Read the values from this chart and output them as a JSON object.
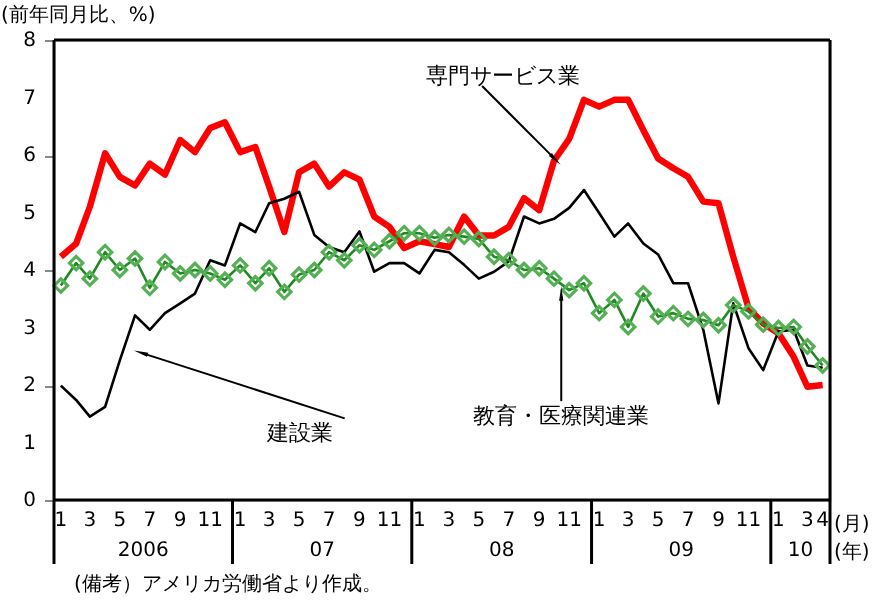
{
  "chart_data": {
    "type": "line",
    "ylabel": "(前年同月比、%)",
    "x": [
      "2006-01",
      "2006-02",
      "2006-03",
      "2006-04",
      "2006-05",
      "2006-06",
      "2006-07",
      "2006-08",
      "2006-09",
      "2006-10",
      "2006-11",
      "2006-12",
      "2007-01",
      "2007-02",
      "2007-03",
      "2007-04",
      "2007-05",
      "2007-06",
      "2007-07",
      "2007-08",
      "2007-09",
      "2007-10",
      "2007-11",
      "2007-12",
      "2008-01",
      "2008-02",
      "2008-03",
      "2008-04",
      "2008-05",
      "2008-06",
      "2008-07",
      "2008-08",
      "2008-09",
      "2008-10",
      "2008-11",
      "2008-12",
      "2009-01",
      "2009-02",
      "2009-03",
      "2009-04",
      "2009-05",
      "2009-06",
      "2009-07",
      "2009-08",
      "2009-09",
      "2009-10",
      "2009-11",
      "2009-12",
      "2010-01",
      "2010-02",
      "2010-03",
      "2010-04"
    ],
    "xlim": [
      "2005-12-18",
      "2010-04-16"
    ],
    "xticks": [
      {
        "value": "2006-01",
        "label": "1"
      },
      {
        "value": "2006-03",
        "label": "3"
      },
      {
        "value": "2006-05",
        "label": "5"
      },
      {
        "value": "2006-07",
        "label": "7"
      },
      {
        "value": "2006-09",
        "label": "9"
      },
      {
        "value": "2006-11",
        "label": "11"
      },
      {
        "value": "2007-01",
        "label": "1"
      },
      {
        "value": "2007-03",
        "label": "3"
      },
      {
        "value": "2007-05",
        "label": "5"
      },
      {
        "value": "2007-07",
        "label": "7"
      },
      {
        "value": "2007-09",
        "label": "9"
      },
      {
        "value": "2007-11",
        "label": "11"
      },
      {
        "value": "2008-01",
        "label": "1"
      },
      {
        "value": "2008-03",
        "label": "3"
      },
      {
        "value": "2008-05",
        "label": "5"
      },
      {
        "value": "2008-07",
        "label": "7"
      },
      {
        "value": "2008-09",
        "label": "9"
      },
      {
        "value": "2008-11",
        "label": "11"
      },
      {
        "value": "2009-01",
        "label": "1"
      },
      {
        "value": "2009-03",
        "label": "3"
      },
      {
        "value": "2009-05",
        "label": "5"
      },
      {
        "value": "2009-07",
        "label": "7"
      },
      {
        "value": "2009-09",
        "label": "9"
      },
      {
        "value": "2009-11",
        "label": "11"
      },
      {
        "value": "2010-01",
        "label": "1"
      },
      {
        "value": "2010-03",
        "label": "3"
      },
      {
        "value": "2010-04",
        "label": "4"
      }
    ],
    "ylim": [
      0,
      8
    ],
    "yticks": [
      0,
      1,
      2,
      3,
      4,
      5,
      6,
      7,
      8
    ],
    "grid": false,
    "series": [
      {
        "name": "専門サービス業",
        "color": "#ff0000",
        "marker": "none",
        "values": [
          4.23,
          4.46,
          5.1,
          6.03,
          5.62,
          5.47,
          5.85,
          5.66,
          6.26,
          6.05,
          6.47,
          6.57,
          6.05,
          6.14,
          5.45,
          4.66,
          5.7,
          5.85,
          5.45,
          5.7,
          5.57,
          4.93,
          4.75,
          4.38,
          4.5,
          4.45,
          4.4,
          4.93,
          4.6,
          4.6,
          4.75,
          5.25,
          5.04,
          5.9,
          6.28,
          6.96,
          6.84,
          6.96,
          6.96,
          6.43,
          5.94,
          5.77,
          5.62,
          5.19,
          5.16,
          4.23,
          3.34,
          3.07,
          2.9,
          2.49,
          1.97,
          2.0
        ]
      },
      {
        "name": "建設業",
        "color": "#000000",
        "marker": "none",
        "values": [
          1.99,
          1.74,
          1.45,
          1.62,
          2.43,
          3.21,
          2.96,
          3.25,
          3.42,
          3.59,
          4.17,
          4.08,
          4.81,
          4.66,
          5.16,
          5.24,
          5.36,
          4.61,
          4.4,
          4.31,
          4.67,
          3.97,
          4.12,
          4.12,
          3.94,
          4.35,
          4.31,
          4.09,
          3.85,
          3.97,
          4.15,
          4.93,
          4.81,
          4.89,
          5.08,
          5.39,
          4.99,
          4.58,
          4.81,
          4.46,
          4.27,
          3.77,
          3.77,
          2.96,
          1.68,
          3.42,
          2.64,
          2.26,
          2.93,
          2.96,
          2.34,
          2.3
        ]
      },
      {
        "name": "教育・医療関連業",
        "color": "#1f8a1f",
        "marker": "diamond",
        "values": [
          3.73,
          4.12,
          3.85,
          4.31,
          4.0,
          4.2,
          3.69,
          4.14,
          3.94,
          4.0,
          3.94,
          3.83,
          4.08,
          3.77,
          4.03,
          3.62,
          3.92,
          4.0,
          4.31,
          4.17,
          4.43,
          4.35,
          4.5,
          4.64,
          4.64,
          4.56,
          4.61,
          4.58,
          4.54,
          4.23,
          4.17,
          4.0,
          4.03,
          3.85,
          3.65,
          3.77,
          3.25,
          3.48,
          3.01,
          3.59,
          3.19,
          3.25,
          3.15,
          3.13,
          3.04,
          3.39,
          3.28,
          3.05,
          2.99,
          3.01,
          2.67,
          2.34
        ]
      }
    ],
    "annotations": [
      "2006",
      "07",
      "08",
      "09",
      "10",
      "(月)",
      "(年)",
      "(備考）アメリカ労働省より作成。"
    ]
  }
}
